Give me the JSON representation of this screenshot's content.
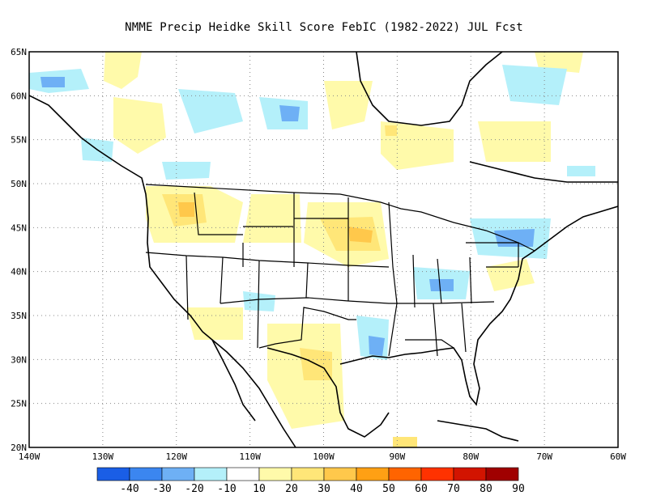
{
  "title": "NMME Precip Heidke Skill Score FebIC (1982-2022) JUL Fcst",
  "map": {
    "lon_range": [
      -140,
      -60
    ],
    "lat_range": [
      20,
      65
    ],
    "lat_labels": [
      "20N",
      "25N",
      "30N",
      "35N",
      "40N",
      "45N",
      "50N",
      "55N",
      "60N",
      "65N"
    ],
    "lon_labels": [
      "140W",
      "130W",
      "120W",
      "110W",
      "100W",
      "90W",
      "80W",
      "70W",
      "60W"
    ],
    "grid": "dotted"
  },
  "legend": {
    "colors": [
      "#1a5ee6",
      "#3b86f0",
      "#6eb0f5",
      "#b4f0fa",
      "#ffffff",
      "#fffaaa",
      "#ffe678",
      "#ffc84b",
      "#ffa014",
      "#ff6400",
      "#ff3200",
      "#d21400",
      "#a00000"
    ],
    "labels": [
      "-40",
      "-30",
      "-20",
      "-10",
      "10",
      "20",
      "30",
      "40",
      "50",
      "60",
      "70",
      "80",
      "90"
    ]
  }
}
